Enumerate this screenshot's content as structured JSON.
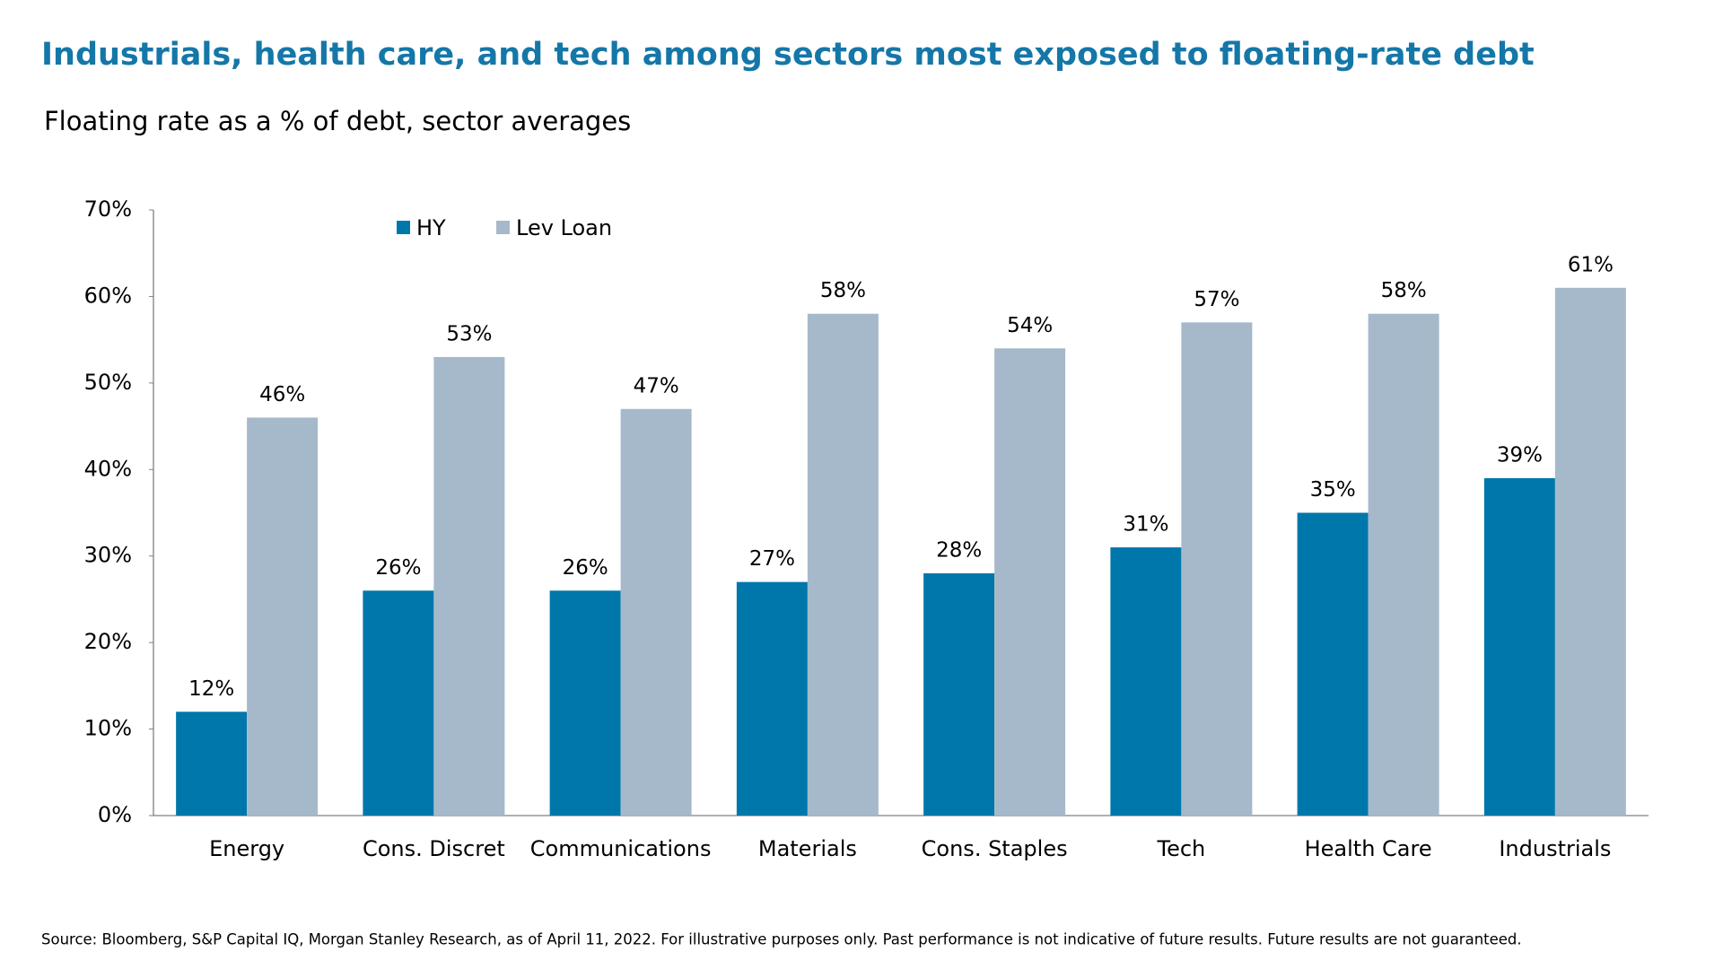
{
  "chart_data": {
    "type": "bar",
    "title": "Industrials, health care, and tech among sectors most exposed to floating-rate debt",
    "subtitle": "Floating rate as a % of debt, sector averages",
    "source": "Source: Bloomberg, S&P Capital IQ, Morgan Stanley Research, as of April 11, 2022. For illustrative purposes only. Past performance is not indicative of future results. Future results are not guaranteed.",
    "categories": [
      "Energy",
      "Cons. Discret",
      "Communications",
      "Materials",
      "Cons. Staples",
      "Tech",
      "Health Care",
      "Industrials"
    ],
    "series": [
      {
        "name": "HY",
        "color": "#0077aa",
        "values": [
          12,
          26,
          26,
          27,
          28,
          31,
          35,
          39
        ],
        "value_labels": [
          "12%",
          "26%",
          "26%",
          "27%",
          "28%",
          "31%",
          "35%",
          "39%"
        ]
      },
      {
        "name": "Lev Loan",
        "color": "#a5b9ca",
        "values": [
          46,
          53,
          47,
          58,
          54,
          57,
          58,
          61
        ],
        "value_labels": [
          "46%",
          "53%",
          "47%",
          "58%",
          "54%",
          "57%",
          "58%",
          "61%"
        ]
      }
    ],
    "ylim": [
      0,
      70
    ],
    "yticks": [
      {
        "value": 0,
        "label": "0%"
      },
      {
        "value": 10,
        "label": "10%"
      },
      {
        "value": 20,
        "label": "20%"
      },
      {
        "value": 30,
        "label": "30%"
      },
      {
        "value": 40,
        "label": "40%"
      },
      {
        "value": 50,
        "label": "50%"
      },
      {
        "value": 60,
        "label": "60%"
      },
      {
        "value": 70,
        "label": "70%"
      }
    ],
    "grid": false
  }
}
